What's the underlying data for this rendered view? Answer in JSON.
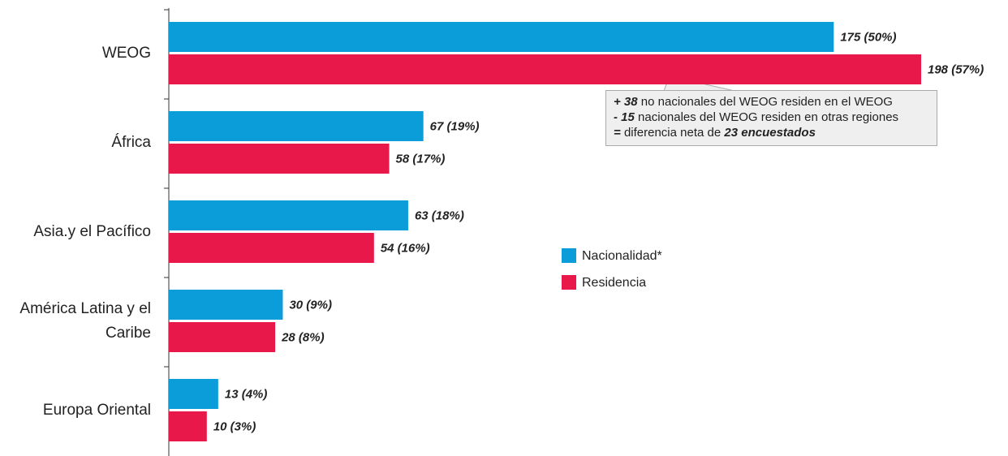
{
  "chart_data": {
    "type": "bar",
    "orientation": "horizontal",
    "categories": [
      "WEOG",
      "África",
      "Asia.y el Pacífico",
      "América Latina y el Caribe",
      "Europa Oriental"
    ],
    "series": [
      {
        "name": "Nacionalidad*",
        "color": "#0a9dd9",
        "values": [
          175,
          67,
          63,
          30,
          13
        ],
        "value_labels": [
          "175 (50%)",
          "67 (19%)",
          "63 (18%)",
          "30 (9%)",
          "13 (4%)"
        ]
      },
      {
        "name": "Residencia",
        "color": "#e8194a",
        "values": [
          198,
          58,
          54,
          28,
          10
        ],
        "value_labels": [
          "198 (57%)",
          "58 (17%)",
          "54 (16%)",
          "28 (8%)",
          "10 (3%)"
        ]
      }
    ],
    "xlim": [
      0,
      220
    ],
    "annotation": [
      {
        "bold": "+ 38",
        "text": "no nacionales del WEOG residen en el WEOG"
      },
      {
        "bold": "- 15",
        "text": "nacionales del WEOG residen en otras regiones"
      },
      {
        "bold": "=",
        "text": "diferencia neta de",
        "bold_end": "23 encuestados"
      }
    ]
  }
}
